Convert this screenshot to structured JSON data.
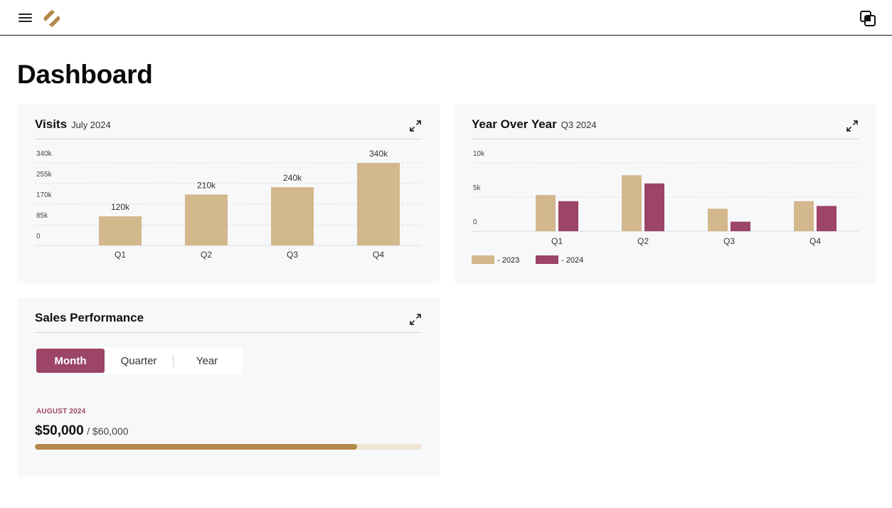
{
  "header": {
    "menu_icon": "hamburger-menu-icon",
    "logo_icon": "diamond-logo-icon",
    "right_icon": "layers-icon"
  },
  "page": {
    "title": "Dashboard"
  },
  "colors": {
    "tan": "#d3b78d",
    "plum": "#9c4566",
    "progress_fill": "#b38a4c",
    "progress_track": "#efe4d5"
  },
  "visits": {
    "title": "Visits",
    "subtitle": "July 2024",
    "chart_data": {
      "type": "bar",
      "categories": [
        "Q1",
        "Q2",
        "Q3",
        "Q4"
      ],
      "values": [
        120,
        210,
        240,
        340
      ],
      "value_labels": [
        "120k",
        "210k",
        "240k",
        "340k"
      ],
      "yticks": [
        0,
        85,
        170,
        255,
        340
      ],
      "ytick_labels": [
        "0",
        "85k",
        "170k",
        "255k",
        "340k"
      ],
      "ylim": [
        0,
        340
      ],
      "grid": true
    }
  },
  "yoy": {
    "title": "Year Over Year",
    "subtitle": "Q3 2024",
    "chart_data": {
      "type": "bar",
      "categories": [
        "Q1",
        "Q2",
        "Q3",
        "Q4"
      ],
      "series": [
        {
          "name": "- 2023",
          "values": [
            5.3,
            8.2,
            3.3,
            4.4
          ],
          "color": "#d3b78d"
        },
        {
          "name": "- 2024",
          "values": [
            4.4,
            7.0,
            1.4,
            3.7
          ],
          "color": "#9c4566"
        }
      ],
      "yticks": [
        0,
        5,
        10
      ],
      "ytick_labels": [
        "0",
        "5k",
        "10k"
      ],
      "ylim": [
        0,
        10
      ],
      "grid": true,
      "legend": "bottom-left"
    }
  },
  "sales": {
    "title": "Sales Performance",
    "tabs": [
      {
        "label": "Month",
        "active": true
      },
      {
        "label": "Quarter",
        "active": false
      },
      {
        "label": "Year",
        "active": false
      }
    ],
    "period": "AUGUST 2024",
    "amount": "$50,000",
    "target": "/ $60,000",
    "progress": 0.8333
  }
}
